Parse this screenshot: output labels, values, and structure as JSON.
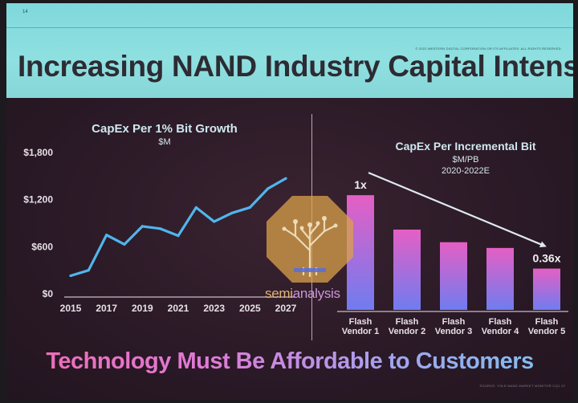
{
  "slide": {
    "number": "14",
    "copyright": "© 2022 WESTERN DIGITAL CORPORATION OR ITS AFFILIATES. ALL RIGHTS RESERVED.",
    "title": "Increasing NAND Industry Capital Intensity",
    "tagline": "Technology Must Be Affordable to Customers",
    "source": "SOURCE: YOLE NAND MARKET MONITOR CQ1 22"
  },
  "watermark": {
    "text_a": "semi",
    "text_b": "analysis"
  },
  "colors": {
    "header_bg": "#8fe0e0",
    "slide_bg": "#2a1926",
    "line": "#4fb6ec",
    "bar_top": "#e55fc4",
    "bar_bottom": "#6f7cf0",
    "arrow": "#dfe8f0",
    "watermark": "#d9a14a"
  },
  "chart_data": [
    {
      "type": "line",
      "title": "CapEx Per 1% Bit Growth",
      "subtitle": "$M",
      "x": [
        2015,
        2016,
        2017,
        2018,
        2019,
        2020,
        2021,
        2022,
        2023,
        2024,
        2025,
        2026,
        2027
      ],
      "x_tick_labels": [
        "2015",
        "2017",
        "2019",
        "2021",
        "2023",
        "2025",
        "2027"
      ],
      "y": [
        230,
        300,
        750,
        630,
        860,
        830,
        740,
        1100,
        920,
        1030,
        1100,
        1340,
        1470
      ],
      "y_tick_labels": [
        "$0",
        "$600",
        "$1,200",
        "$1,800"
      ],
      "ylim": [
        0,
        1800
      ],
      "grid": false
    },
    {
      "type": "bar",
      "title": "CapEx Per Incremental Bit",
      "subtitle": "$M/PB",
      "subtitle2": "2020-2022E",
      "categories": [
        "Flash Vendor 1",
        "Flash Vendor 2",
        "Flash Vendor 3",
        "Flash Vendor 4",
        "Flash Vendor 5"
      ],
      "category_lines": [
        [
          "Flash",
          "Vendor 1"
        ],
        [
          "Flash",
          "Vendor 2"
        ],
        [
          "Flash",
          "Vendor 3"
        ],
        [
          "Flash",
          "Vendor 4"
        ],
        [
          "Flash",
          "Vendor 5"
        ]
      ],
      "values": [
        1.0,
        0.7,
        0.59,
        0.54,
        0.36
      ],
      "annotations": [
        {
          "category": "Flash Vendor 1",
          "text": "1x"
        },
        {
          "category": "Flash Vendor 5",
          "text": "0.36x"
        }
      ],
      "ylim": [
        0,
        1.05
      ],
      "grid": false
    }
  ]
}
